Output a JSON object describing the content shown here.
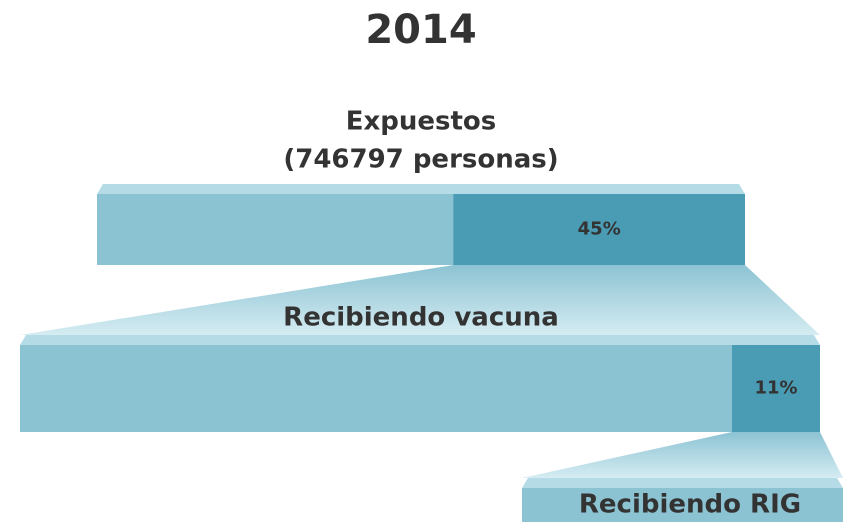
{
  "title": "2014",
  "stages": [
    {
      "label": "Expuestos",
      "sublabel": "(746797 personas)",
      "share": 45,
      "share_label": "45%"
    },
    {
      "label": "Recibiendo vacuna",
      "share": 11,
      "share_label": "11%"
    },
    {
      "label": "Recibiendo RIG"
    }
  ]
}
